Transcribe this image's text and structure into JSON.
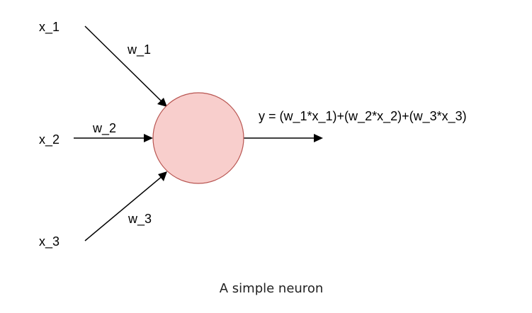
{
  "inputs": [
    {
      "label": "x_1",
      "weight": "w_1"
    },
    {
      "label": "x_2",
      "weight": "w_2"
    },
    {
      "label": "x_3",
      "weight": "w_3"
    }
  ],
  "output": {
    "formula": "y = (w_1*x_1)+(w_2*x_2)+(w_3*x_3)"
  },
  "caption": "A simple neuron",
  "colors": {
    "neuron_fill": "#f8cecc",
    "neuron_stroke": "#b85450",
    "edge": "#000000"
  }
}
